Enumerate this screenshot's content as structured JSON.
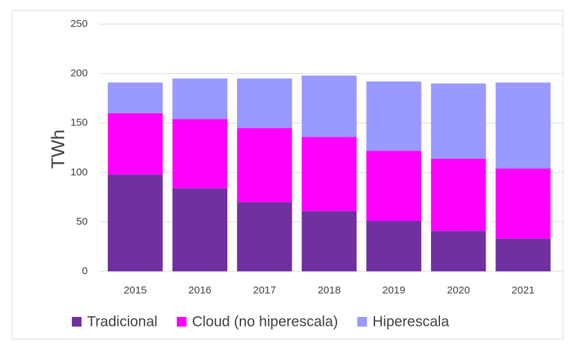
{
  "chart_data": {
    "type": "stacked_bar",
    "y_label": "TWh",
    "categories": [
      "2015",
      "2016",
      "2017",
      "2018",
      "2019",
      "2020",
      "2021"
    ],
    "series": [
      {
        "name": "Tradicional",
        "color": "#7030a0",
        "values": [
          98,
          84,
          70,
          61,
          51,
          41,
          33
        ]
      },
      {
        "name": "Cloud (no hiperescala)",
        "color": "#ff00ff",
        "values": [
          62,
          70,
          75,
          75,
          71,
          73,
          71
        ]
      },
      {
        "name": "Hiperescala",
        "color": "#9999ff",
        "values": [
          31,
          41,
          50,
          62,
          70,
          76,
          87
        ]
      }
    ],
    "ylim": [
      0,
      250
    ],
    "yticks": [
      0,
      50,
      100,
      150,
      200,
      250
    ],
    "grid": true,
    "legend": "bottom"
  }
}
